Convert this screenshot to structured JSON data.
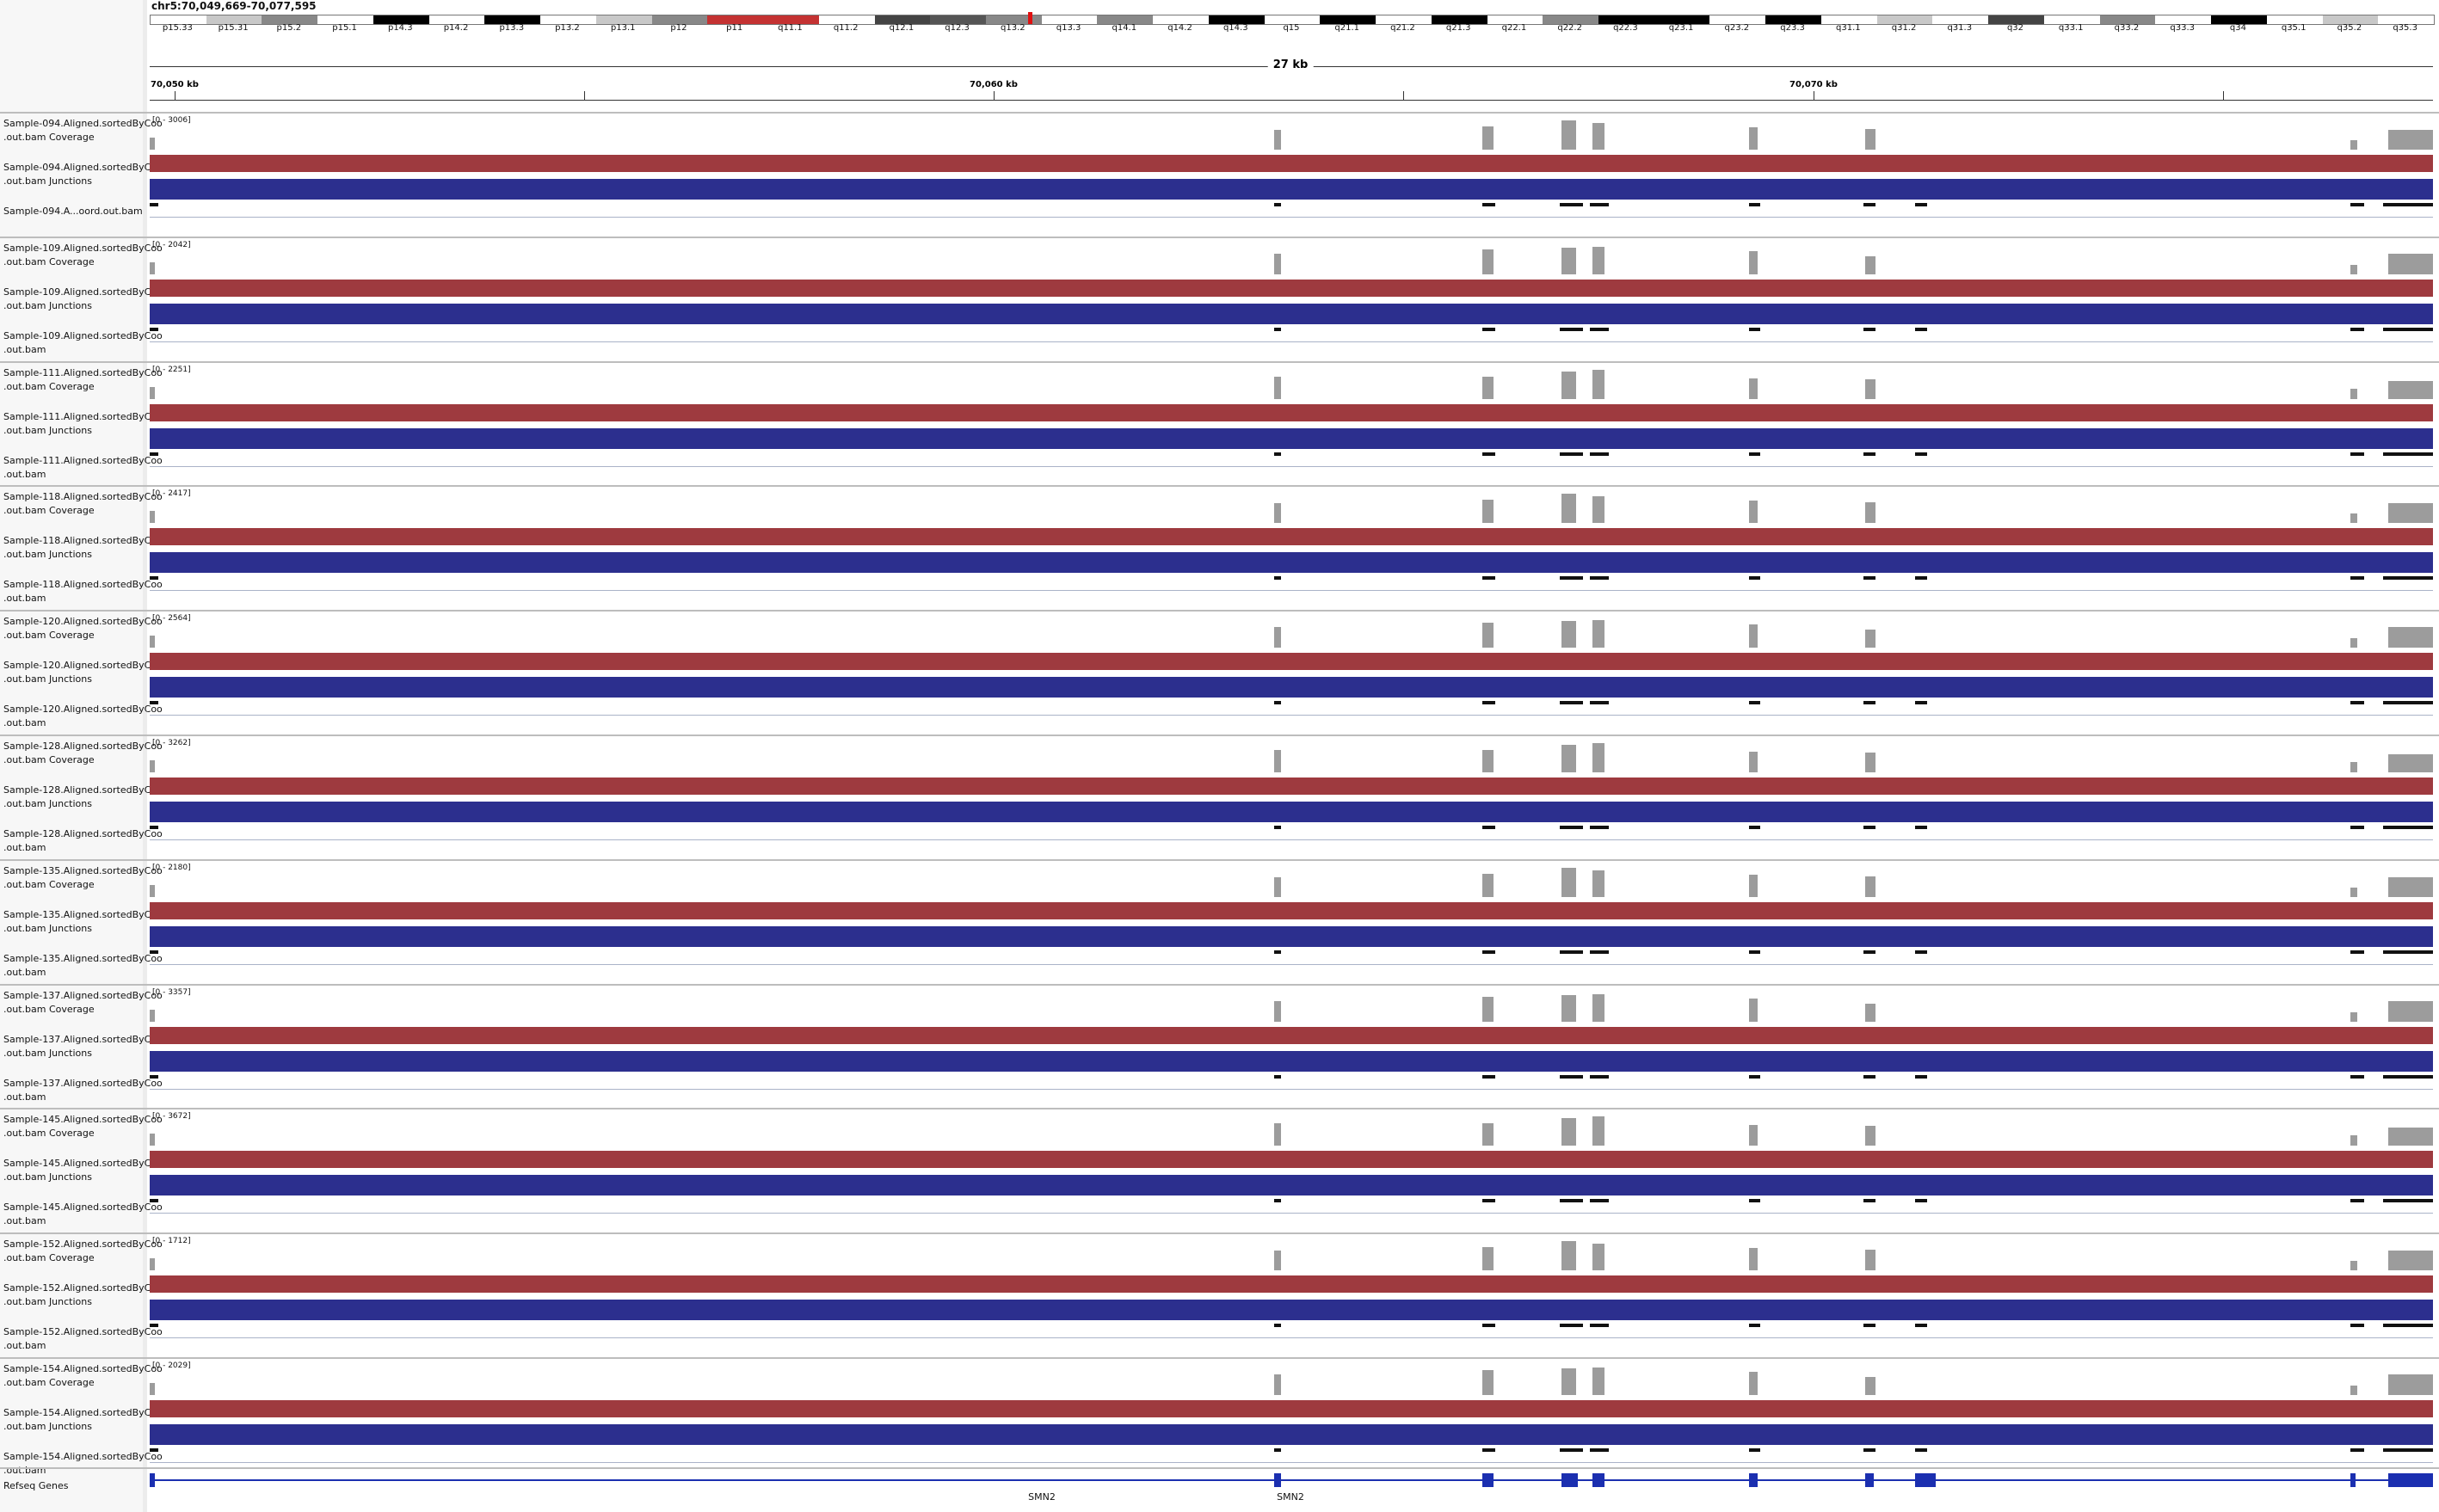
{
  "header": {
    "locus": "chr5:70,049,669-70,077,595",
    "width_label": "27 kb",
    "ticks": [
      "70,050 kb",
      "70,060 kb",
      "70,070 kb"
    ]
  },
  "ideogram": {
    "bands": [
      "p15.33",
      "p15.31",
      "p15.2",
      "p15.1",
      "p14.3",
      "p14.2",
      "p13.3",
      "p13.2",
      "p13.1",
      "p12",
      "p11",
      "q11.1",
      "q11.2",
      "q12.1",
      "q12.3",
      "q13.2",
      "q13.3",
      "q14.1",
      "q14.2",
      "q14.3",
      "q15",
      "q21.1",
      "q21.2",
      "q21.3",
      "q22.1",
      "q22.2",
      "q22.3",
      "q23.1",
      "q23.2",
      "q23.3",
      "q31.1",
      "q31.2",
      "q31.3",
      "q32",
      "q33.1",
      "q33.2",
      "q33.3",
      "q34",
      "q35.1",
      "q35.2",
      "q35.3"
    ]
  },
  "samples": [
    {
      "id": "Sample-094",
      "cov": "Sample-094.Aligned.sortedByCoo\n.out.bam Coverage",
      "junc": "Sample-094.Aligned.sortedByCoo\n.out.bam Junctions",
      "bam": "Sample-094.A...oord.out.bam",
      "range": "[0 - 3006]"
    },
    {
      "id": "Sample-109",
      "cov": "Sample-109.Aligned.sortedByCoo\n.out.bam Coverage",
      "junc": "Sample-109.Aligned.sortedByCoo\n.out.bam Junctions",
      "bam": "Sample-109.Aligned.sortedByCoo\n.out.bam",
      "range": "[0 - 2042]"
    },
    {
      "id": "Sample-111",
      "cov": "Sample-111.Aligned.sortedByCoo\n.out.bam Coverage",
      "junc": "Sample-111.Aligned.sortedByCoo\n.out.bam Junctions",
      "bam": "Sample-111.Aligned.sortedByCoo\n.out.bam",
      "range": "[0 - 2251]"
    },
    {
      "id": "Sample-118",
      "cov": "Sample-118.Aligned.sortedByCoo\n.out.bam Coverage",
      "junc": "Sample-118.Aligned.sortedByCoo\n.out.bam Junctions",
      "bam": "Sample-118.Aligned.sortedByCoo\n.out.bam",
      "range": "[0 - 2417]"
    },
    {
      "id": "Sample-120",
      "cov": "Sample-120.Aligned.sortedByCoo\n.out.bam Coverage",
      "junc": "Sample-120.Aligned.sortedByCoo\n.out.bam Junctions",
      "bam": "Sample-120.Aligned.sortedByCoo\n.out.bam",
      "range": "[0 - 2564]"
    },
    {
      "id": "Sample-128",
      "cov": "Sample-128.Aligned.sortedByCoo\n.out.bam Coverage",
      "junc": "Sample-128.Aligned.sortedByCoo\n.out.bam Junctions",
      "bam": "Sample-128.Aligned.sortedByCoo\n.out.bam",
      "range": "[0 - 3262]"
    },
    {
      "id": "Sample-135",
      "cov": "Sample-135.Aligned.sortedByCoo\n.out.bam Coverage",
      "junc": "Sample-135.Aligned.sortedByCoo\n.out.bam Junctions",
      "bam": "Sample-135.Aligned.sortedByCoo\n.out.bam",
      "range": "[0 - 2180]"
    },
    {
      "id": "Sample-137",
      "cov": "Sample-137.Aligned.sortedByCoo\n.out.bam Coverage",
      "junc": "Sample-137.Aligned.sortedByCoo\n.out.bam Junctions",
      "bam": "Sample-137.Aligned.sortedByCoo\n.out.bam",
      "range": "[0 - 3357]"
    },
    {
      "id": "Sample-145",
      "cov": "Sample-145.Aligned.sortedByCoo\n.out.bam Coverage",
      "junc": "Sample-145.Aligned.sortedByCoo\n.out.bam Junctions",
      "bam": "Sample-145.Aligned.sortedByCoo\n.out.bam",
      "range": "[0 - 3672]"
    },
    {
      "id": "Sample-152",
      "cov": "Sample-152.Aligned.sortedByCoo\n.out.bam Coverage",
      "junc": "Sample-152.Aligned.sortedByCoo\n.out.bam Junctions",
      "bam": "Sample-152.Aligned.sortedByCoo\n.out.bam",
      "range": "[0 - 1712]"
    },
    {
      "id": "Sample-154",
      "cov": "Sample-154.Aligned.sortedByCoo\n.out.bam Coverage",
      "junc": "Sample-154.Aligned.sortedByCoo\n.out.bam Junctions",
      "bam": "Sample-154.Aligned.sortedByCoo\n.out.bam",
      "range": "[0 - 2029]"
    }
  ],
  "genes": {
    "track_label": "Refseq Genes",
    "names": [
      "SMN2",
      "SMN2"
    ]
  },
  "colors": {
    "coverage": "#9c9c9c",
    "junction_forward": "#9e3a3f",
    "junction_reverse": "#2c2f8e",
    "gene": "#1b2fb0"
  }
}
